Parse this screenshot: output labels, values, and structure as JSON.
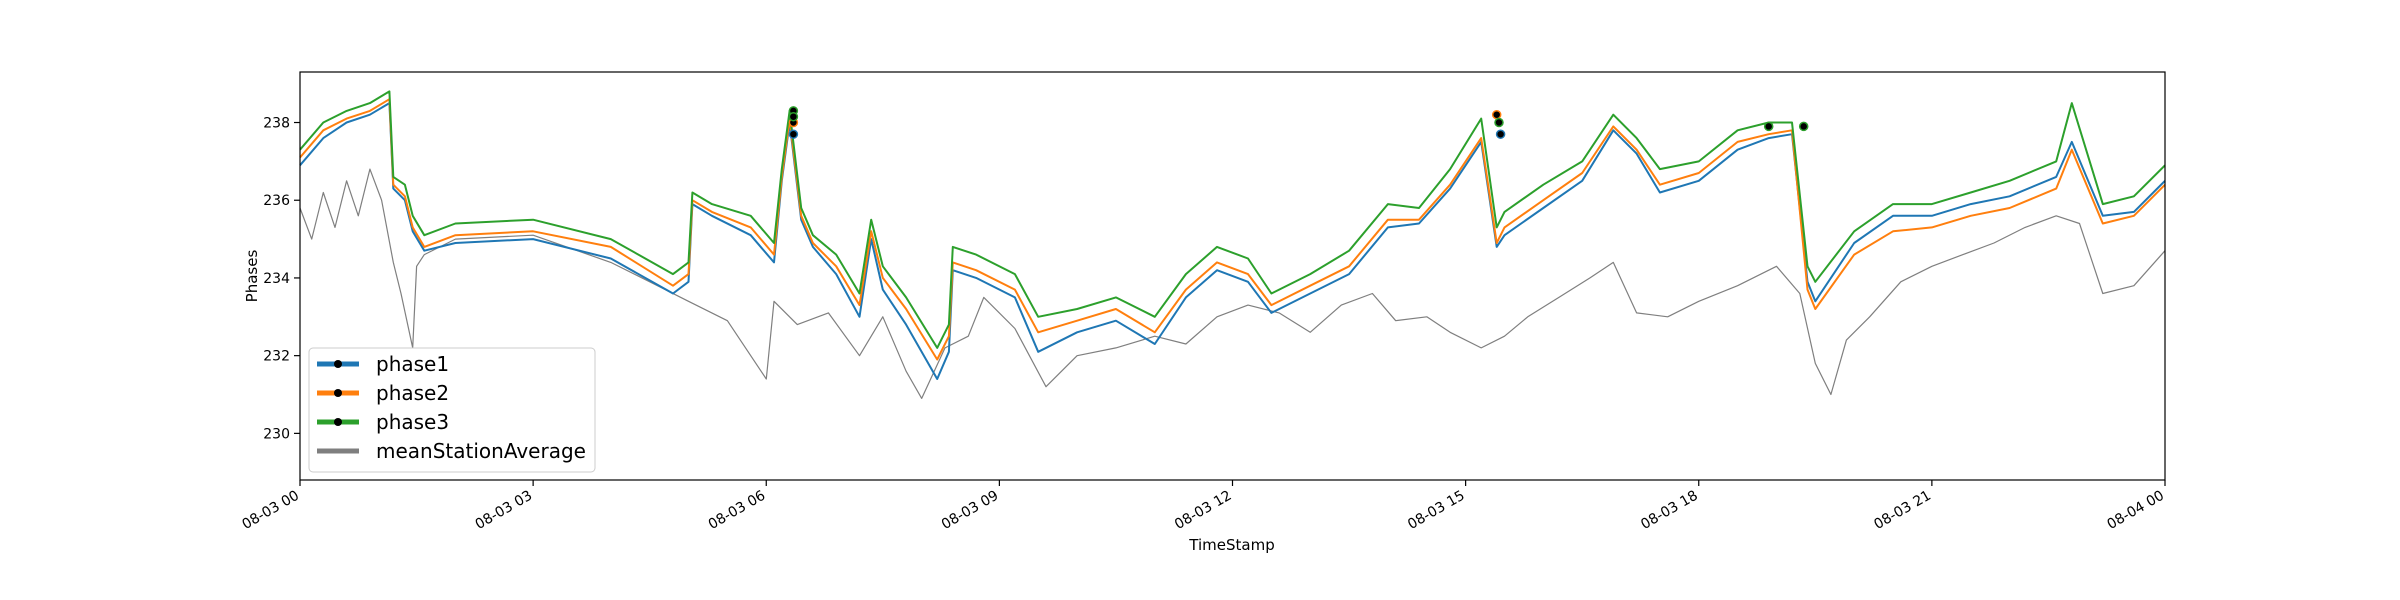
{
  "chart_data": {
    "type": "line",
    "title": "",
    "xlabel": "TimeStamp",
    "ylabel": "Phases",
    "xlim": [
      "08-03 00",
      "08-04 00"
    ],
    "ylim": [
      228.8,
      239.3
    ],
    "x_tick_labels": [
      "08-03 00",
      "08-03 03",
      "08-03 06",
      "08-03 09",
      "08-03 12",
      "08-03 15",
      "08-03 18",
      "08-03 21",
      "08-04 00"
    ],
    "y_tick_labels": [
      "230",
      "232",
      "234",
      "236",
      "238"
    ],
    "y_ticks": [
      230,
      232,
      234,
      236,
      238
    ],
    "grid": false,
    "legend_position": "lower-left",
    "x_unit": "hours since 08-03 00",
    "series": [
      {
        "name": "phase1",
        "color": "#1f77b4",
        "marker_color": "#000000",
        "x": [
          0,
          0.3,
          0.6,
          0.9,
          1.15,
          1.2,
          1.35,
          1.45,
          1.6,
          2,
          3,
          4,
          4.8,
          5.0,
          5.05,
          5.3,
          5.8,
          6.1,
          6.2,
          6.3,
          6.45,
          6.6,
          6.9,
          7.2,
          7.35,
          7.5,
          7.8,
          8.2,
          8.35,
          8.4,
          8.7,
          9.2,
          9.5,
          10,
          10.5,
          11,
          11.4,
          11.8,
          12.2,
          12.5,
          13,
          13.5,
          14,
          14.4,
          14.8,
          15.2,
          15.4,
          15.5,
          16,
          16.5,
          16.9,
          17.2,
          17.5,
          18,
          18.5,
          18.9,
          19.2,
          19.4,
          19.5,
          20,
          20.5,
          21,
          21.5,
          22,
          22.6,
          22.8,
          23.2,
          23.6,
          24
        ],
        "y": [
          236.9,
          237.6,
          238.0,
          238.2,
          238.5,
          236.3,
          236.0,
          235.2,
          234.7,
          234.9,
          235.0,
          234.5,
          233.6,
          233.9,
          235.9,
          235.6,
          235.1,
          234.4,
          236.5,
          238.0,
          235.5,
          234.8,
          234.1,
          233.0,
          235.0,
          233.7,
          232.8,
          231.4,
          232.1,
          234.2,
          234.0,
          233.5,
          232.1,
          232.6,
          232.9,
          232.3,
          233.5,
          234.2,
          233.9,
          233.1,
          233.6,
          234.1,
          235.3,
          235.4,
          236.3,
          237.5,
          234.8,
          235.1,
          235.8,
          236.5,
          237.8,
          237.2,
          236.2,
          236.5,
          237.3,
          237.6,
          237.7,
          233.9,
          233.4,
          234.9,
          235.6,
          235.6,
          235.9,
          236.1,
          236.6,
          237.5,
          235.6,
          235.7,
          236.5
        ]
      },
      {
        "name": "phase2",
        "color": "#ff7f0e",
        "marker_color": "#000000",
        "x": [
          0,
          0.3,
          0.6,
          0.9,
          1.15,
          1.2,
          1.35,
          1.45,
          1.6,
          2,
          3,
          4,
          4.8,
          5.0,
          5.05,
          5.3,
          5.8,
          6.1,
          6.2,
          6.3,
          6.45,
          6.6,
          6.9,
          7.2,
          7.35,
          7.5,
          7.8,
          8.2,
          8.35,
          8.4,
          8.7,
          9.2,
          9.5,
          10,
          10.5,
          11,
          11.4,
          11.8,
          12.2,
          12.5,
          13,
          13.5,
          14,
          14.4,
          14.8,
          15.2,
          15.4,
          15.5,
          16,
          16.5,
          16.9,
          17.2,
          17.5,
          18,
          18.5,
          18.9,
          19.2,
          19.4,
          19.5,
          20,
          20.5,
          21,
          21.5,
          22,
          22.6,
          22.8,
          23.2,
          23.6,
          24
        ],
        "y": [
          237.1,
          237.8,
          238.1,
          238.3,
          238.6,
          236.4,
          236.1,
          235.3,
          234.8,
          235.1,
          235.2,
          234.8,
          233.8,
          234.1,
          236.0,
          235.7,
          235.3,
          234.6,
          236.6,
          238.1,
          235.6,
          234.9,
          234.3,
          233.3,
          235.2,
          234.0,
          233.2,
          231.9,
          232.5,
          234.4,
          234.2,
          233.7,
          232.6,
          232.9,
          233.2,
          232.6,
          233.7,
          234.4,
          234.1,
          233.3,
          233.8,
          234.3,
          235.5,
          235.5,
          236.4,
          237.6,
          234.9,
          235.3,
          236.0,
          236.7,
          237.9,
          237.3,
          236.4,
          236.7,
          237.5,
          237.7,
          237.8,
          233.7,
          233.2,
          234.6,
          235.2,
          235.3,
          235.6,
          235.8,
          236.3,
          237.3,
          235.4,
          235.6,
          236.4
        ]
      },
      {
        "name": "phase3",
        "color": "#2ca02c",
        "marker_color": "#000000",
        "x": [
          0,
          0.3,
          0.6,
          0.9,
          1.15,
          1.2,
          1.35,
          1.45,
          1.6,
          2,
          3,
          4,
          4.8,
          5.0,
          5.05,
          5.3,
          5.8,
          6.1,
          6.2,
          6.3,
          6.45,
          6.6,
          6.9,
          7.2,
          7.35,
          7.5,
          7.8,
          8.2,
          8.35,
          8.4,
          8.7,
          9.2,
          9.5,
          10,
          10.5,
          11,
          11.4,
          11.8,
          12.2,
          12.5,
          13,
          13.5,
          14,
          14.4,
          14.8,
          15.2,
          15.4,
          15.5,
          16,
          16.5,
          16.9,
          17.2,
          17.5,
          18,
          18.5,
          18.9,
          19.2,
          19.4,
          19.5,
          20,
          20.5,
          21,
          21.5,
          22,
          22.6,
          22.8,
          23.2,
          23.6,
          24
        ],
        "y": [
          237.3,
          238.0,
          238.3,
          238.5,
          238.8,
          236.6,
          236.4,
          235.6,
          235.1,
          235.4,
          235.5,
          235.0,
          234.1,
          234.4,
          236.2,
          235.9,
          235.6,
          234.9,
          236.8,
          238.3,
          235.8,
          235.1,
          234.6,
          233.6,
          235.5,
          234.3,
          233.5,
          232.2,
          232.8,
          234.8,
          234.6,
          234.1,
          233.0,
          233.2,
          233.5,
          233.0,
          234.1,
          234.8,
          234.5,
          233.6,
          234.1,
          234.7,
          235.9,
          235.8,
          236.8,
          238.1,
          235.3,
          235.7,
          236.4,
          237.0,
          238.2,
          237.6,
          236.8,
          237.0,
          237.8,
          238.0,
          238.0,
          234.3,
          233.9,
          235.2,
          235.9,
          235.9,
          236.2,
          236.5,
          237.0,
          238.5,
          235.9,
          236.1,
          236.9
        ]
      },
      {
        "name": "meanStationAverage",
        "color": "#7f7f7f",
        "x": [
          0,
          0.15,
          0.3,
          0.45,
          0.6,
          0.75,
          0.9,
          1.05,
          1.2,
          1.3,
          1.45,
          1.5,
          1.6,
          2,
          3,
          4,
          4.6,
          5,
          5.5,
          6.0,
          6.1,
          6.4,
          6.8,
          7.2,
          7.5,
          7.8,
          8.0,
          8.3,
          8.6,
          8.8,
          9.2,
          9.6,
          10,
          10.5,
          11,
          11.4,
          11.8,
          12.2,
          12.6,
          13,
          13.4,
          13.8,
          14.1,
          14.5,
          14.8,
          15.2,
          15.5,
          15.8,
          16.2,
          16.6,
          16.9,
          17.2,
          17.6,
          18,
          18.5,
          19,
          19.3,
          19.5,
          19.7,
          19.9,
          20.2,
          20.6,
          21,
          21.4,
          21.8,
          22.2,
          22.6,
          22.9,
          23.2,
          23.6,
          24
        ],
        "y": [
          235.8,
          235.0,
          236.2,
          235.3,
          236.5,
          235.6,
          236.8,
          236.0,
          234.4,
          233.6,
          232.2,
          234.3,
          234.6,
          235.0,
          235.1,
          234.4,
          233.8,
          233.4,
          232.9,
          231.4,
          233.4,
          232.8,
          233.1,
          232.0,
          233.0,
          231.6,
          230.9,
          232.2,
          232.5,
          233.5,
          232.7,
          231.2,
          232.0,
          232.2,
          232.5,
          232.3,
          233.0,
          233.3,
          233.1,
          232.6,
          233.3,
          233.6,
          232.9,
          233.0,
          232.6,
          232.2,
          232.5,
          233.0,
          233.5,
          234.0,
          234.4,
          233.1,
          233.0,
          233.4,
          233.8,
          234.3,
          233.6,
          231.8,
          231.0,
          232.4,
          233.0,
          233.9,
          234.3,
          234.6,
          234.9,
          235.3,
          235.6,
          235.4,
          233.6,
          233.8,
          234.7
        ]
      }
    ],
    "markers": [
      {
        "series": "phase1",
        "x": 6.35,
        "y": 237.7
      },
      {
        "series": "phase2",
        "x": 6.35,
        "y": 238.0
      },
      {
        "series": "phase3",
        "x": 6.35,
        "y": 238.3
      },
      {
        "series": "phase3",
        "x": 6.35,
        "y": 238.15
      },
      {
        "series": "phase2",
        "x": 15.4,
        "y": 238.2
      },
      {
        "series": "phase3",
        "x": 15.43,
        "y": 238.0
      },
      {
        "series": "phase1",
        "x": 15.45,
        "y": 237.7
      },
      {
        "series": "phase3",
        "x": 18.9,
        "y": 237.9
      },
      {
        "series": "phase3",
        "x": 19.35,
        "y": 237.9
      }
    ]
  }
}
